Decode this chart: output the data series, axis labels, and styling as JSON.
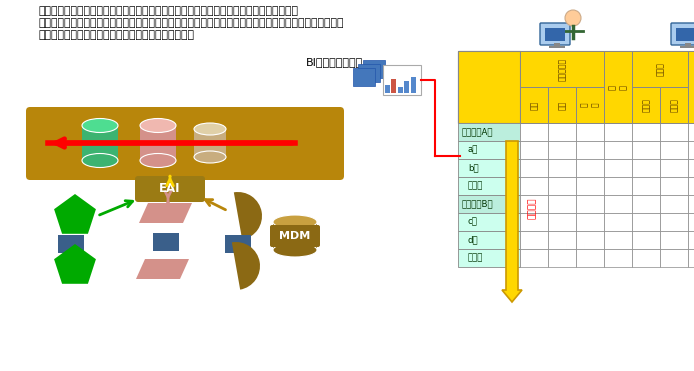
{
  "title_text1": "経費予実管理の対象となる科目・分析コードごとにグループ横串の管理責任者を設置し、",
  "title_text2": "月次（場合によっては週次）で予算に対する実績進捗を管理し、各社、店舗間に競争の意識を持たせると",
  "title_text3": "ともに、年度の着地に向かってコントロールします。",
  "bi_label": "BIソリューション",
  "eai_label": "EAI",
  "mdm_label": "MDM",
  "yojitsu_label": "予実管理",
  "row_labels": [
    "グループA社",
    "a店",
    "b店",
    "・・・",
    "グループB社",
    "c店",
    "d店",
    "・・・"
  ],
  "header_top": [
    "水道光熱費",
    "",
    "用度品",
    "",
    ""
  ],
  "header_sub": [
    "水道",
    "電気",
    "・・・",
    "トレー",
    "レジ袋",
    "・・"
  ],
  "gold_dark": "#8B6914",
  "gold_mid": "#B8860B",
  "gold_bright": "#FFD700",
  "green_dark": "#00AA00",
  "green_cyl": "#3CB371",
  "pink_shape": "#D4918A",
  "blue_shape": "#3A5F8A",
  "tan_shape": "#C8AD7F",
  "mint_cell": "#CCFFEE",
  "white_cell": "#FFFFFF",
  "red_color": "#FF0000",
  "eai_bg": "#9B7B14",
  "table_border": "#888888"
}
